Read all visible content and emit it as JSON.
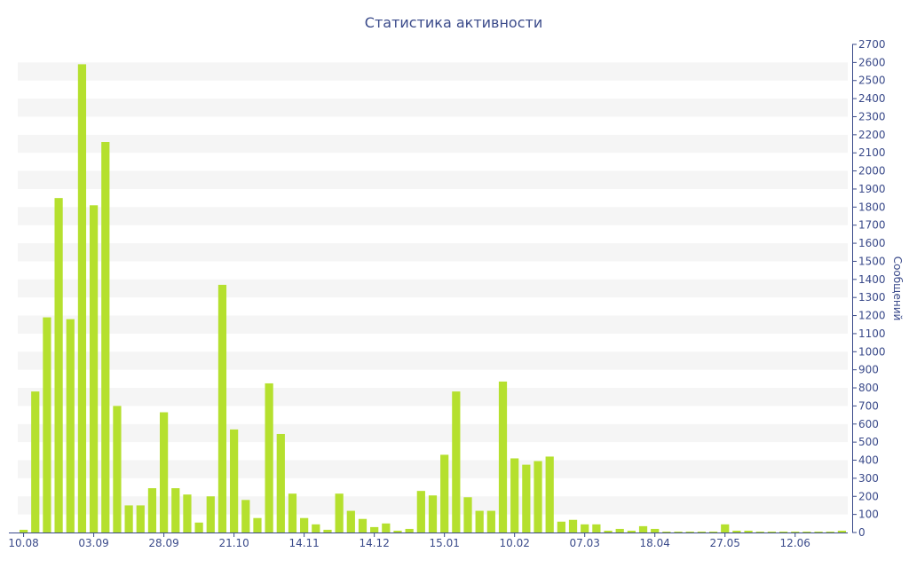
{
  "chart_data": {
    "type": "bar",
    "title": "Статистика активности",
    "xlabel": "",
    "ylabel": "Сообщений",
    "ylim": [
      0,
      2700
    ],
    "y_ticks": [
      0,
      100,
      200,
      300,
      400,
      500,
      600,
      700,
      800,
      900,
      1000,
      1100,
      1200,
      1300,
      1400,
      1500,
      1600,
      1700,
      1800,
      1900,
      2000,
      2100,
      2200,
      2300,
      2400,
      2500,
      2600,
      2700
    ],
    "y_axis_position": "right",
    "grid": "horizontal alternating bands",
    "legend": "none",
    "x_tick_labels": [
      {
        "index": 0,
        "label": "10.08"
      },
      {
        "index": 6,
        "label": "03.09"
      },
      {
        "index": 12,
        "label": "28.09"
      },
      {
        "index": 18,
        "label": "21.10"
      },
      {
        "index": 24,
        "label": "14.11"
      },
      {
        "index": 30,
        "label": "14.12"
      },
      {
        "index": 36,
        "label": "15.01"
      },
      {
        "index": 42,
        "label": "10.02"
      },
      {
        "index": 48,
        "label": "07.03"
      },
      {
        "index": 54,
        "label": "18.04"
      },
      {
        "index": 60,
        "label": "27.05"
      },
      {
        "index": 66,
        "label": "12.06"
      }
    ],
    "values": [
      15,
      780,
      1190,
      1850,
      1180,
      2590,
      1810,
      2160,
      700,
      150,
      150,
      245,
      665,
      245,
      210,
      55,
      200,
      1370,
      570,
      180,
      80,
      825,
      545,
      215,
      80,
      45,
      15,
      215,
      120,
      75,
      30,
      50,
      10,
      20,
      230,
      205,
      430,
      780,
      195,
      120,
      120,
      835,
      410,
      375,
      395,
      420,
      60,
      70,
      45,
      45,
      10,
      20,
      10,
      35,
      20,
      5,
      5,
      5,
      5,
      5,
      45,
      10,
      10,
      5,
      5,
      5,
      5,
      5,
      5,
      5,
      10
    ],
    "bar_color": "#b5e02e",
    "text_color": "#3a4a8a",
    "band_color": "#f5f5f5"
  }
}
